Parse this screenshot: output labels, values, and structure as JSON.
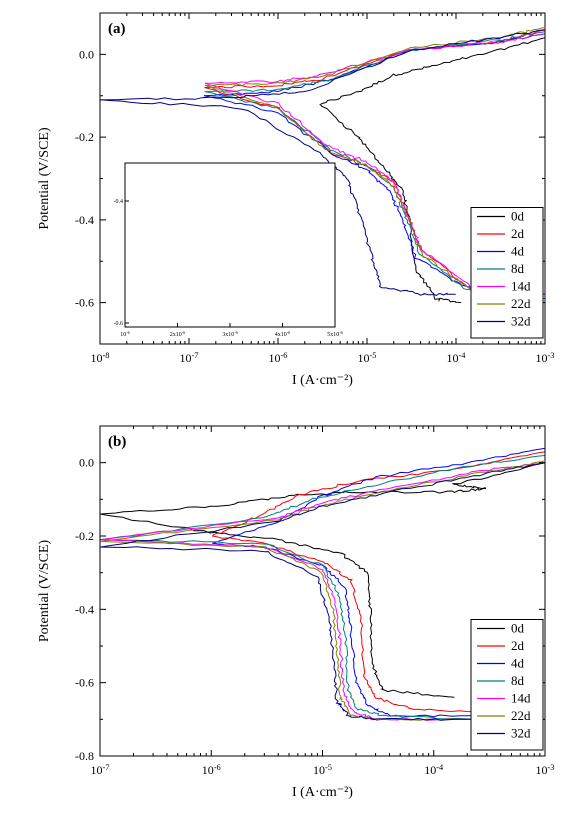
{
  "chart_data": [
    {
      "type": "line",
      "panel_label": "(a)",
      "xlabel": "I (A·cm⁻²)",
      "ylabel": "Potential (V/SCE)",
      "xscale": "log",
      "xlim": [
        1e-08,
        0.001
      ],
      "ylim": [
        -0.7,
        0.1
      ],
      "x_tick_labels": [
        "10-8",
        "10-7",
        "10-6",
        "10-5",
        "10-4",
        "10-3"
      ],
      "y_tick_labels": [
        "0.0",
        "-0.2",
        "-0.4",
        "-0.6"
      ],
      "y_ticks": [
        0.0,
        -0.2,
        -0.4,
        -0.6
      ],
      "legend_position": "lower-right",
      "inset": {
        "x_tick_labels": [
          "10-6",
          "2x10-6",
          "3x10-6",
          "4x10-6",
          "5x10-6"
        ],
        "y_tick_labels": [
          "-0.4",
          "-0.6"
        ],
        "ylim": [
          -0.62,
          -0.35
        ],
        "xlim": [
          1e-06,
          5e-06
        ]
      },
      "series": [
        {
          "name": "0d",
          "color": "#000000",
          "ecorr": -0.12,
          "x_anodic": [
            3e-06,
            8e-06,
            2e-05,
            5e-05,
            0.0002,
            0.001
          ],
          "y_anodic": [
            -0.12,
            -0.09,
            -0.05,
            -0.03,
            0.0,
            0.04
          ],
          "x_cathodic": [
            3e-06,
            8e-06,
            1.5e-05,
            2.5e-05,
            3e-05,
            3.5e-05,
            6e-05,
            0.00011
          ],
          "y_cathodic": [
            -0.12,
            -0.2,
            -0.27,
            -0.33,
            -0.4,
            -0.52,
            -0.59,
            -0.6
          ]
        },
        {
          "name": "2d",
          "color": "#ff0000",
          "ecorr": -0.08,
          "x_anodic": [
            1.5e-07,
            1e-06,
            3e-06,
            3e-05,
            0.0003,
            0.001
          ],
          "y_anodic": [
            -0.08,
            -0.075,
            -0.06,
            0.01,
            0.03,
            0.06
          ],
          "x_cathodic": [
            1.5e-07,
            1e-06,
            4e-06,
            1e-05,
            2e-05,
            3e-05,
            4e-05,
            0.00015,
            0.001
          ],
          "y_cathodic": [
            -0.08,
            -0.13,
            -0.24,
            -0.27,
            -0.31,
            -0.4,
            -0.47,
            -0.57,
            -0.58
          ]
        },
        {
          "name": "4d",
          "color": "#0000ff",
          "ecorr": -0.1,
          "x_anodic": [
            1.5e-07,
            1e-06,
            4e-06,
            3e-05,
            0.0003,
            0.001
          ],
          "y_anodic": [
            -0.1,
            -0.09,
            -0.06,
            0.01,
            0.03,
            0.05
          ],
          "x_cathodic": [
            1.5e-07,
            1e-06,
            4e-06,
            1e-05,
            1.8e-05,
            2.5e-05,
            3.5e-05,
            0.00012,
            0.001
          ],
          "y_cathodic": [
            -0.1,
            -0.14,
            -0.24,
            -0.28,
            -0.33,
            -0.4,
            -0.49,
            -0.56,
            -0.58
          ]
        },
        {
          "name": "8d",
          "color": "#008080",
          "ecorr": -0.09,
          "x_anodic": [
            1.5e-07,
            1e-06,
            4e-06,
            3e-05,
            0.0003,
            0.001
          ],
          "y_anodic": [
            -0.09,
            -0.085,
            -0.06,
            0.01,
            0.035,
            0.055
          ],
          "x_cathodic": [
            1.5e-07,
            1e-06,
            4e-06,
            1e-05,
            2e-05,
            2.8e-05,
            3.8e-05,
            0.00013,
            0.001
          ],
          "y_cathodic": [
            -0.09,
            -0.13,
            -0.23,
            -0.27,
            -0.32,
            -0.4,
            -0.48,
            -0.57,
            -0.59
          ]
        },
        {
          "name": "14d",
          "color": "#ff00ff",
          "ecorr": -0.07,
          "x_anodic": [
            1.5e-07,
            1e-06,
            3e-06,
            3e-05,
            0.0003,
            0.001
          ],
          "y_anodic": [
            -0.07,
            -0.065,
            -0.05,
            0.01,
            0.03,
            0.05
          ],
          "x_cathodic": [
            1.5e-07,
            1e-06,
            3.5e-06,
            1e-05,
            2e-05,
            3e-05,
            4e-05,
            0.00015,
            0.001
          ],
          "y_cathodic": [
            -0.07,
            -0.12,
            -0.22,
            -0.26,
            -0.31,
            -0.4,
            -0.47,
            -0.56,
            -0.58
          ]
        },
        {
          "name": "22d",
          "color": "#808000",
          "ecorr": -0.075,
          "x_anodic": [
            1.5e-07,
            1e-06,
            3e-06,
            3e-05,
            0.0003,
            0.001
          ],
          "y_anodic": [
            -0.075,
            -0.07,
            -0.055,
            0.015,
            0.04,
            0.065
          ],
          "x_cathodic": [
            1.5e-07,
            1e-06,
            3.5e-06,
            1e-05,
            2e-05,
            3e-05,
            4e-05,
            0.00015,
            0.001
          ],
          "y_cathodic": [
            -0.075,
            -0.13,
            -0.23,
            -0.27,
            -0.32,
            -0.4,
            -0.48,
            -0.57,
            -0.58
          ]
        },
        {
          "name": "32d",
          "color": "#000080",
          "ecorr": -0.11,
          "x_anodic": [
            1e-08,
            3e-07,
            2e-06,
            3e-05,
            0.0003,
            0.001
          ],
          "y_anodic": [
            -0.11,
            -0.105,
            -0.09,
            0.01,
            0.04,
            0.06
          ],
          "x_cathodic": [
            1e-08,
            4e-07,
            3e-06,
            6e-06,
            8e-06,
            1.1e-05,
            1.4e-05,
            4e-05,
            0.0001
          ],
          "y_cathodic": [
            -0.11,
            -0.13,
            -0.24,
            -0.3,
            -0.38,
            -0.48,
            -0.56,
            -0.58,
            -0.58
          ]
        }
      ]
    },
    {
      "type": "line",
      "panel_label": "(b)",
      "xlabel": "I (A·cm⁻²)",
      "ylabel": "Potential (V/SCE)",
      "xscale": "log",
      "xlim": [
        1e-07,
        0.001
      ],
      "ylim": [
        -0.8,
        0.1
      ],
      "x_tick_labels": [
        "10-7",
        "10-6",
        "10-5",
        "10-4",
        "10-3"
      ],
      "y_tick_labels": [
        "0.0",
        "-0.2",
        "-0.4",
        "-0.6",
        "-0.8"
      ],
      "y_ticks": [
        0.0,
        -0.2,
        -0.4,
        -0.6,
        -0.8
      ],
      "legend_position": "lower-right",
      "series": [
        {
          "name": "0d",
          "color": "#000000",
          "ecorr": -0.14,
          "x_anodic": [
            1e-07,
            1e-06,
            5e-06,
            2e-05,
            0.00015,
            0.0003,
            0.00015,
            0.001
          ],
          "y_anodic": [
            -0.14,
            -0.12,
            -0.09,
            -0.08,
            -0.08,
            -0.07,
            -0.06,
            0.0
          ],
          "x_cathodic": [
            1e-07,
            1e-06,
            4e-06,
            1.5e-05,
            2.5e-05,
            2.7e-05,
            2.8e-05,
            3.5e-05,
            0.00015
          ],
          "y_cathodic": [
            -0.14,
            -0.19,
            -0.21,
            -0.25,
            -0.3,
            -0.4,
            -0.55,
            -0.62,
            -0.64
          ]
        },
        {
          "name": "2d",
          "color": "#ff0000",
          "ecorr": -0.2,
          "x_anodic": [
            1e-06,
            2.5e-06,
            6e-06,
            2e-05,
            0.00015,
            0.001
          ],
          "y_anodic": [
            -0.2,
            -0.15,
            -0.09,
            -0.05,
            -0.02,
            0.03
          ],
          "x_cathodic": [
            1e-06,
            3e-06,
            1e-05,
            1.8e-05,
            2.2e-05,
            2.4e-05,
            3e-05,
            6e-05,
            0.00025
          ],
          "y_cathodic": [
            -0.2,
            -0.22,
            -0.27,
            -0.32,
            -0.42,
            -0.58,
            -0.64,
            -0.67,
            -0.68
          ]
        },
        {
          "name": "4d",
          "color": "#0000ff",
          "ecorr": -0.22,
          "x_anodic": [
            1e-06,
            4e-06,
            1e-05,
            3e-05,
            0.0002,
            0.001
          ],
          "y_anodic": [
            -0.22,
            -0.16,
            -0.09,
            -0.04,
            0.0,
            0.04
          ],
          "x_cathodic": [
            1e-06,
            3e-06,
            1e-05,
            1.6e-05,
            1.8e-05,
            2e-05,
            2.5e-05,
            4e-05,
            0.00025
          ],
          "y_cathodic": [
            -0.22,
            -0.23,
            -0.28,
            -0.34,
            -0.45,
            -0.6,
            -0.66,
            -0.69,
            -0.69
          ]
        },
        {
          "name": "8d",
          "color": "#008080",
          "ecorr": -0.21,
          "x_anodic": [
            1e-07,
            3e-06,
            8e-06,
            3e-05,
            0.0002,
            0.001
          ],
          "y_anodic": [
            -0.21,
            -0.15,
            -0.1,
            -0.06,
            -0.01,
            0.02
          ],
          "x_cathodic": [
            1e-07,
            3e-06,
            1e-05,
            1.4e-05,
            1.6e-05,
            1.7e-05,
            2e-05,
            3.5e-05,
            0.00025
          ],
          "y_cathodic": [
            -0.21,
            -0.22,
            -0.28,
            -0.36,
            -0.47,
            -0.62,
            -0.67,
            -0.69,
            -0.7
          ]
        },
        {
          "name": "14d",
          "color": "#ff00ff",
          "ecorr": -0.21,
          "x_anodic": [
            1e-07,
            4e-06,
            1e-05,
            4e-05,
            0.0003,
            0.001
          ],
          "y_anodic": [
            -0.21,
            -0.15,
            -0.11,
            -0.07,
            -0.02,
            0.0
          ],
          "x_cathodic": [
            1e-07,
            3e-06,
            1e-05,
            1.3e-05,
            1.45e-05,
            1.55e-05,
            1.9e-05,
            3e-05,
            0.00025
          ],
          "y_cathodic": [
            -0.21,
            -0.23,
            -0.29,
            -0.38,
            -0.5,
            -0.63,
            -0.68,
            -0.7,
            -0.7
          ]
        },
        {
          "name": "22d",
          "color": "#808000",
          "ecorr": -0.215,
          "x_anodic": [
            1e-07,
            4e-06,
            1e-05,
            4e-05,
            0.0003,
            0.001
          ],
          "y_anodic": [
            -0.215,
            -0.155,
            -0.115,
            -0.075,
            -0.025,
            0.005
          ],
          "x_cathodic": [
            1e-07,
            3e-06,
            1e-05,
            1.25e-05,
            1.35e-05,
            1.45e-05,
            1.8e-05,
            3e-05,
            0.00025
          ],
          "y_cathodic": [
            -0.215,
            -0.23,
            -0.3,
            -0.4,
            -0.52,
            -0.64,
            -0.69,
            -0.7,
            -0.7
          ]
        },
        {
          "name": "32d",
          "color": "#000080",
          "ecorr": -0.23,
          "x_anodic": [
            1e-07,
            4e-06,
            1e-05,
            4e-05,
            0.0003,
            0.001
          ],
          "y_anodic": [
            -0.23,
            -0.16,
            -0.12,
            -0.08,
            -0.03,
            0.0
          ],
          "x_cathodic": [
            1e-07,
            3e-06,
            9e-06,
            1.15e-05,
            1.25e-05,
            1.35e-05,
            1.7e-05,
            3e-05,
            0.00025
          ],
          "y_cathodic": [
            -0.23,
            -0.24,
            -0.31,
            -0.42,
            -0.54,
            -0.65,
            -0.69,
            -0.7,
            -0.7
          ]
        }
      ]
    }
  ]
}
